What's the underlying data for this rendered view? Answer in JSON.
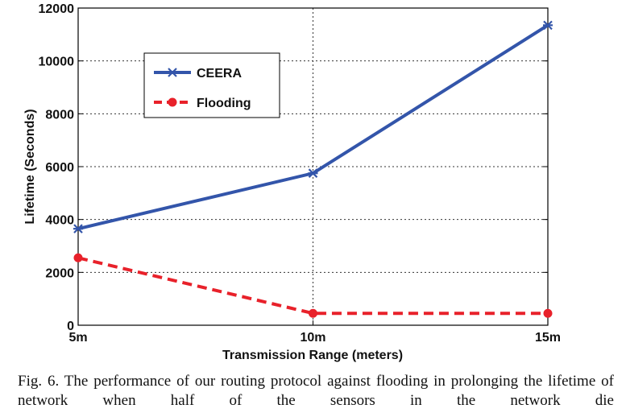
{
  "chart_data": {
    "type": "line",
    "categories": [
      "5m",
      "10m",
      "15m"
    ],
    "xlabel": "Transmission Range (meters)",
    "ylabel": "Lifetime (Seconds)",
    "ylim": [
      0,
      12000
    ],
    "yticks": [
      0,
      2000,
      4000,
      6000,
      8000,
      10000,
      12000
    ],
    "grid": true,
    "legend_position": "upper-left",
    "series": [
      {
        "name": "CEERA",
        "values": [
          3650,
          5750,
          11350
        ],
        "color": "#3355aa",
        "marker": "star",
        "style": "solid"
      },
      {
        "name": "Flooding",
        "values": [
          2550,
          450,
          450
        ],
        "color": "#e8212a",
        "marker": "circle",
        "style": "dashed"
      }
    ]
  },
  "caption": "Fig. 6.  The performance of our routing protocol against flooding in prolonging the lifetime of network when half of the sensors in the network die"
}
